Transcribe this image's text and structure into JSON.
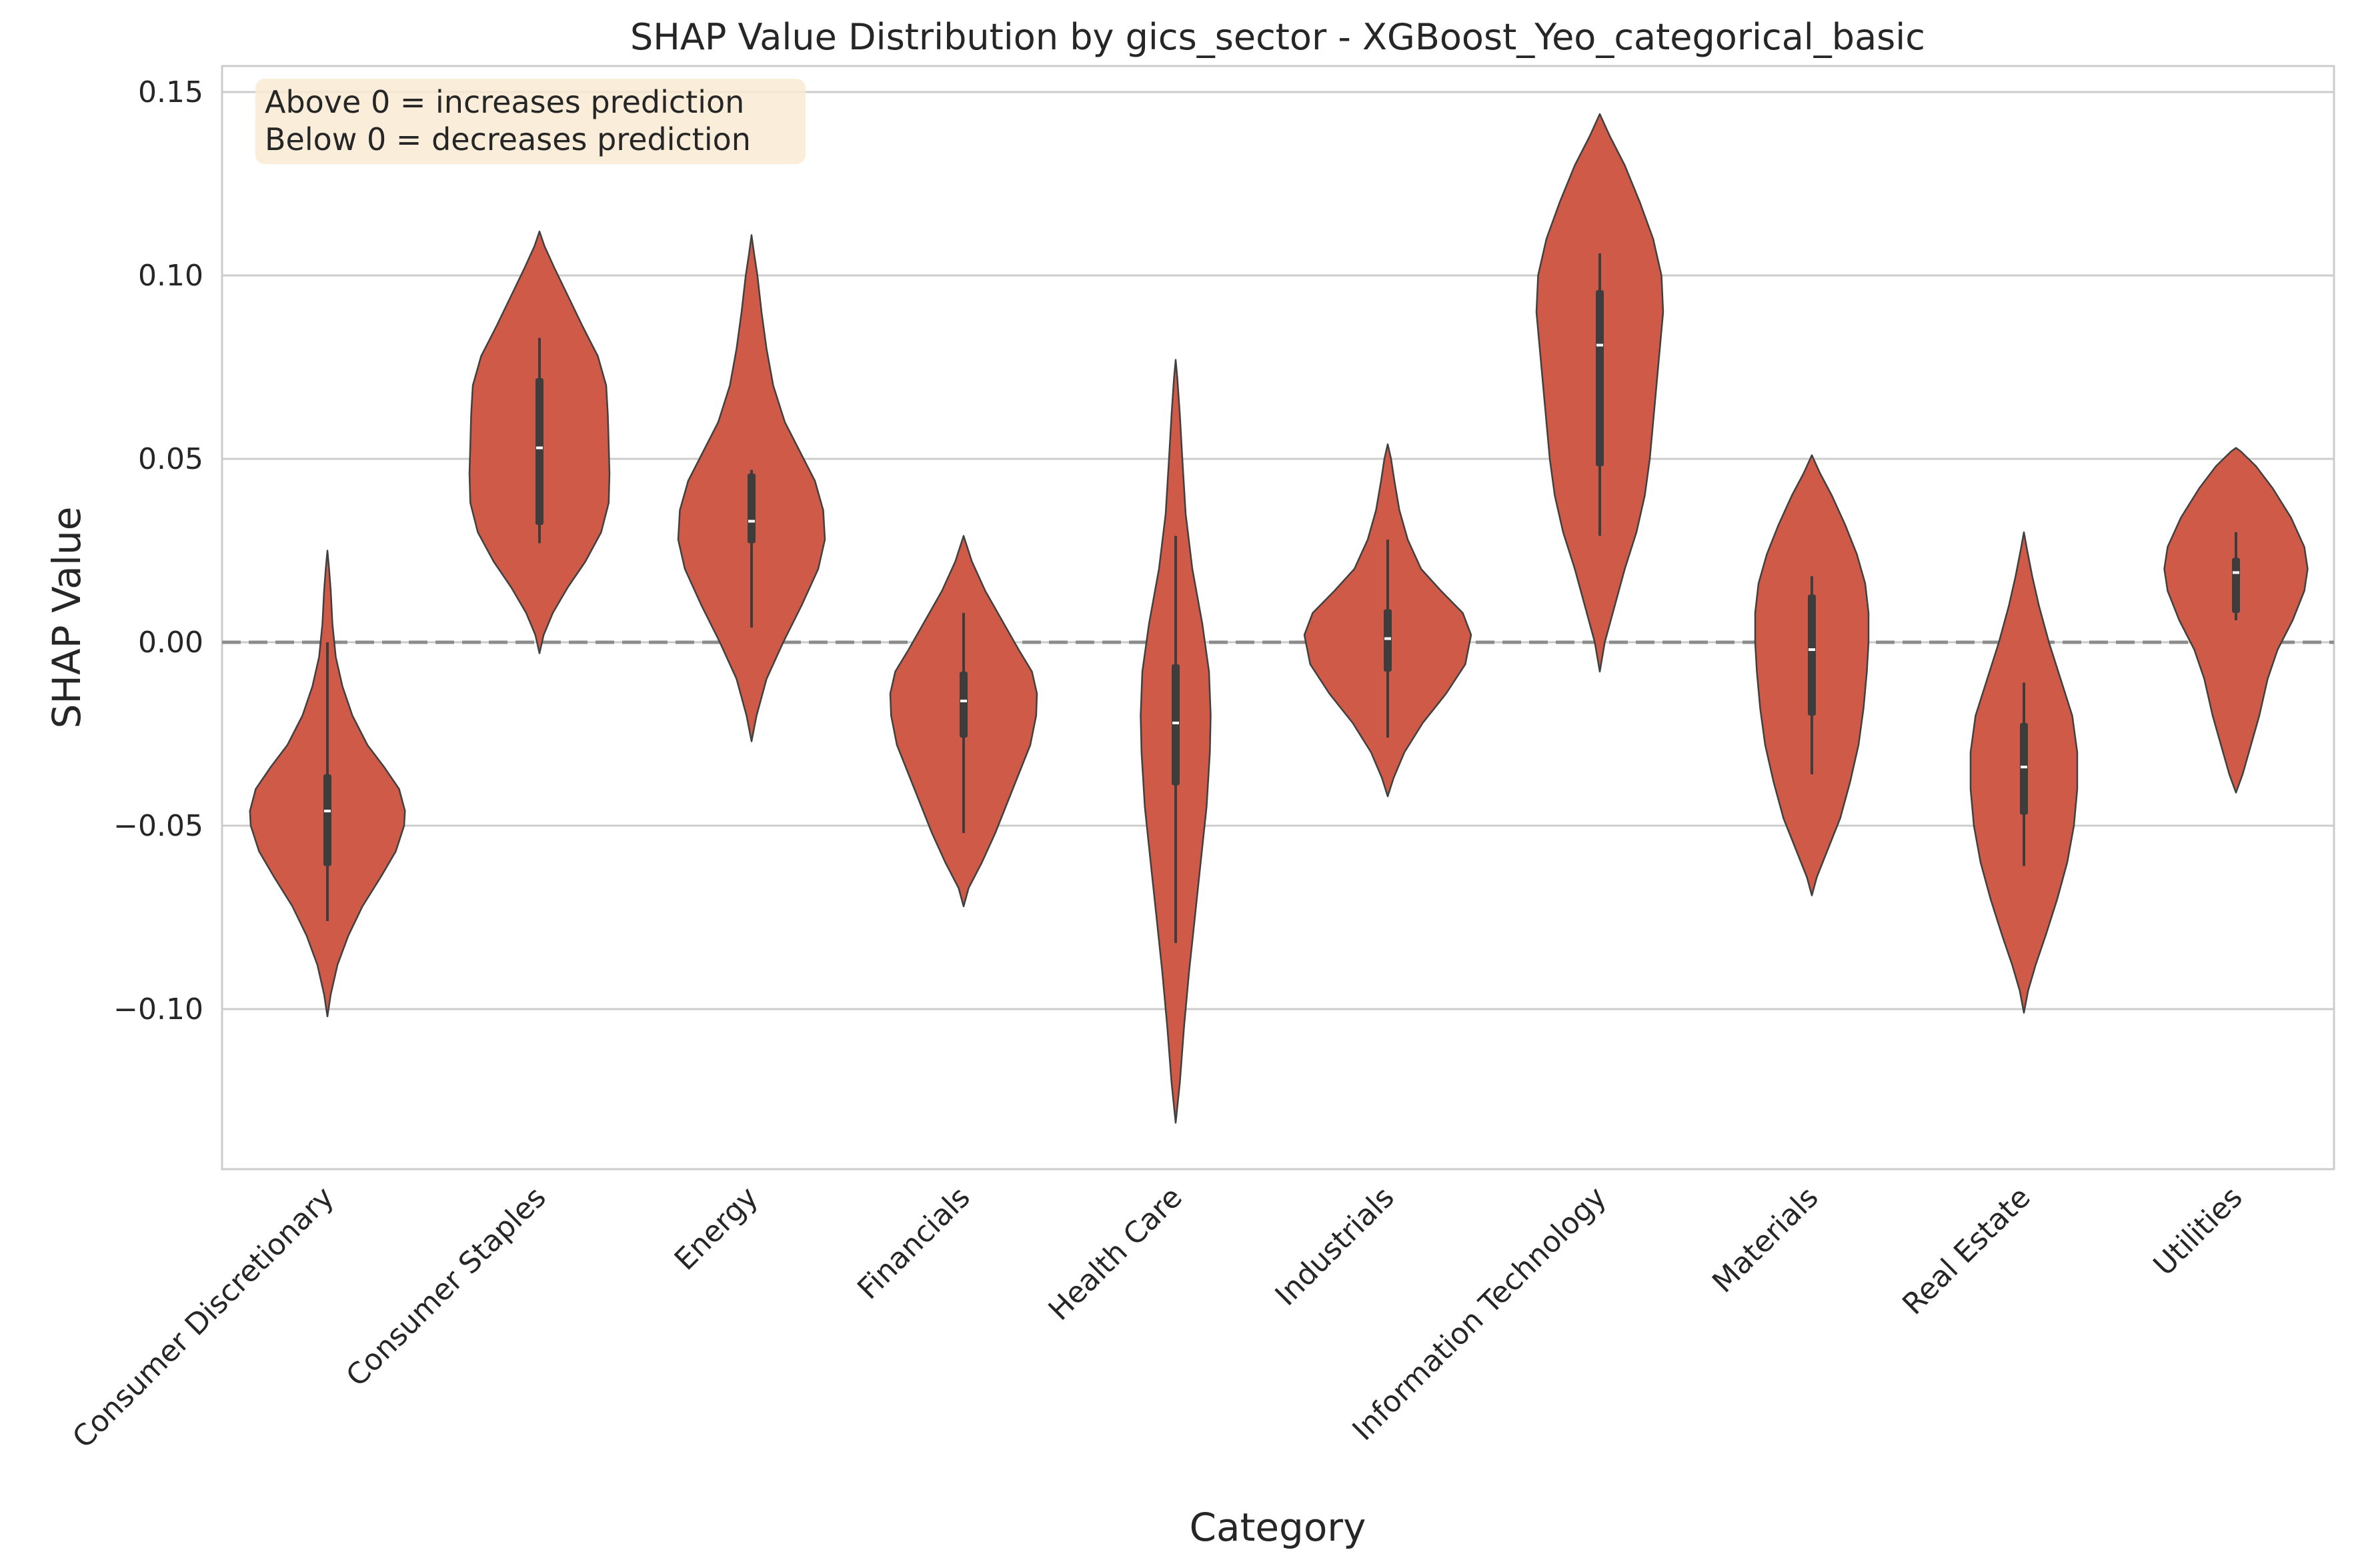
{
  "chart_data": {
    "type": "violin",
    "title": "SHAP Value Distribution by gics_sector - XGBoost_Yeo_categorical_basic",
    "xlabel": "Category",
    "ylabel": "SHAP Value",
    "ylim": [
      -0.145,
      0.157
    ],
    "yticks": [
      0.15,
      0.1,
      0.05,
      0.0,
      -0.05,
      -0.1
    ],
    "ytick_labels": [
      "0.15",
      "0.10",
      "0.05",
      "0.00",
      "−0.05",
      "−0.10"
    ],
    "grid": true,
    "reference_line": 0.0,
    "colors": {
      "violin_fill": "#d05a48",
      "violin_edge": "#404040",
      "box": "#3d3d3d",
      "median": "#ffffff",
      "grid": "#cccccc",
      "zero_line": "#8c8c8c",
      "note_bg": "#f9ebd3",
      "axes_edge": "#cccccc"
    },
    "annotation": {
      "lines": [
        "Above 0 = increases prediction",
        "Below 0 = decreases prediction"
      ],
      "placement": "top-left"
    },
    "categories": [
      {
        "name": "Consumer Discretionary",
        "min": -0.102,
        "max": 0.025,
        "whisker_low": -0.076,
        "whisker_high": 0.0,
        "q1": -0.061,
        "median": -0.046,
        "q3": -0.036,
        "profile": [
          [
            -0.102,
            0.0
          ],
          [
            -0.096,
            0.04
          ],
          [
            -0.088,
            0.12
          ],
          [
            -0.08,
            0.25
          ],
          [
            -0.072,
            0.42
          ],
          [
            -0.064,
            0.64
          ],
          [
            -0.057,
            0.82
          ],
          [
            -0.05,
            0.92
          ],
          [
            -0.046,
            0.93
          ],
          [
            -0.04,
            0.86
          ],
          [
            -0.034,
            0.68
          ],
          [
            -0.028,
            0.48
          ],
          [
            -0.02,
            0.3
          ],
          [
            -0.012,
            0.18
          ],
          [
            -0.004,
            0.1
          ],
          [
            0.005,
            0.06
          ],
          [
            0.014,
            0.04
          ],
          [
            0.02,
            0.02
          ],
          [
            0.025,
            0.0
          ]
        ]
      },
      {
        "name": "Consumer Staples",
        "min": -0.003,
        "max": 0.112,
        "whisker_low": 0.027,
        "whisker_high": 0.083,
        "q1": 0.032,
        "median": 0.053,
        "q3": 0.072,
        "profile": [
          [
            -0.003,
            0.0
          ],
          [
            0.002,
            0.05
          ],
          [
            0.008,
            0.16
          ],
          [
            0.015,
            0.34
          ],
          [
            0.022,
            0.55
          ],
          [
            0.03,
            0.74
          ],
          [
            0.038,
            0.83
          ],
          [
            0.046,
            0.84
          ],
          [
            0.054,
            0.83
          ],
          [
            0.062,
            0.82
          ],
          [
            0.07,
            0.8
          ],
          [
            0.078,
            0.7
          ],
          [
            0.086,
            0.52
          ],
          [
            0.094,
            0.35
          ],
          [
            0.102,
            0.18
          ],
          [
            0.108,
            0.06
          ],
          [
            0.112,
            0.0
          ]
        ]
      },
      {
        "name": "Energy",
        "min": -0.027,
        "max": 0.111,
        "whisker_low": 0.004,
        "whisker_high": 0.047,
        "q1": 0.027,
        "median": 0.033,
        "q3": 0.046,
        "profile": [
          [
            -0.027,
            0.0
          ],
          [
            -0.02,
            0.06
          ],
          [
            -0.01,
            0.18
          ],
          [
            0.0,
            0.38
          ],
          [
            0.01,
            0.6
          ],
          [
            0.02,
            0.8
          ],
          [
            0.028,
            0.88
          ],
          [
            0.036,
            0.86
          ],
          [
            0.044,
            0.76
          ],
          [
            0.052,
            0.58
          ],
          [
            0.06,
            0.4
          ],
          [
            0.07,
            0.26
          ],
          [
            0.08,
            0.18
          ],
          [
            0.09,
            0.12
          ],
          [
            0.1,
            0.07
          ],
          [
            0.106,
            0.03
          ],
          [
            0.111,
            0.0
          ]
        ]
      },
      {
        "name": "Financials",
        "min": -0.072,
        "max": 0.029,
        "whisker_low": -0.052,
        "whisker_high": 0.008,
        "q1": -0.026,
        "median": -0.016,
        "q3": -0.008,
        "profile": [
          [
            -0.072,
            0.0
          ],
          [
            -0.067,
            0.06
          ],
          [
            -0.06,
            0.22
          ],
          [
            -0.052,
            0.38
          ],
          [
            -0.044,
            0.52
          ],
          [
            -0.036,
            0.66
          ],
          [
            -0.028,
            0.8
          ],
          [
            -0.02,
            0.87
          ],
          [
            -0.014,
            0.88
          ],
          [
            -0.008,
            0.82
          ],
          [
            -0.002,
            0.66
          ],
          [
            0.006,
            0.46
          ],
          [
            0.014,
            0.26
          ],
          [
            0.022,
            0.1
          ],
          [
            0.029,
            0.0
          ]
        ]
      },
      {
        "name": "Health Care",
        "min": -0.131,
        "max": 0.077,
        "whisker_low": -0.082,
        "whisker_high": 0.029,
        "q1": -0.039,
        "median": -0.022,
        "q3": -0.006,
        "profile": [
          [
            -0.131,
            0.0
          ],
          [
            -0.12,
            0.05
          ],
          [
            -0.105,
            0.1
          ],
          [
            -0.09,
            0.16
          ],
          [
            -0.075,
            0.23
          ],
          [
            -0.06,
            0.3
          ],
          [
            -0.045,
            0.37
          ],
          [
            -0.03,
            0.41
          ],
          [
            -0.02,
            0.42
          ],
          [
            -0.008,
            0.4
          ],
          [
            0.005,
            0.32
          ],
          [
            0.02,
            0.2
          ],
          [
            0.035,
            0.12
          ],
          [
            0.05,
            0.08
          ],
          [
            0.062,
            0.05
          ],
          [
            0.072,
            0.02
          ],
          [
            0.077,
            0.0
          ]
        ]
      },
      {
        "name": "Industrials",
        "min": -0.042,
        "max": 0.054,
        "whisker_low": -0.026,
        "whisker_high": 0.028,
        "q1": -0.008,
        "median": 0.001,
        "q3": 0.009,
        "profile": [
          [
            -0.042,
            0.0
          ],
          [
            -0.037,
            0.07
          ],
          [
            -0.03,
            0.2
          ],
          [
            -0.022,
            0.42
          ],
          [
            -0.014,
            0.7
          ],
          [
            -0.006,
            0.93
          ],
          [
            0.002,
            1.0
          ],
          [
            0.008,
            0.9
          ],
          [
            0.014,
            0.64
          ],
          [
            0.02,
            0.4
          ],
          [
            0.028,
            0.24
          ],
          [
            0.036,
            0.14
          ],
          [
            0.044,
            0.08
          ],
          [
            0.05,
            0.04
          ],
          [
            0.054,
            0.0
          ]
        ]
      },
      {
        "name": "Information Technology",
        "min": -0.008,
        "max": 0.144,
        "whisker_low": 0.029,
        "whisker_high": 0.106,
        "q1": 0.048,
        "median": 0.081,
        "q3": 0.096,
        "profile": [
          [
            -0.008,
            0.0
          ],
          [
            0.0,
            0.06
          ],
          [
            0.01,
            0.18
          ],
          [
            0.02,
            0.3
          ],
          [
            0.03,
            0.44
          ],
          [
            0.04,
            0.54
          ],
          [
            0.05,
            0.6
          ],
          [
            0.06,
            0.64
          ],
          [
            0.07,
            0.68
          ],
          [
            0.08,
            0.72
          ],
          [
            0.09,
            0.76
          ],
          [
            0.1,
            0.74
          ],
          [
            0.11,
            0.64
          ],
          [
            0.12,
            0.48
          ],
          [
            0.13,
            0.3
          ],
          [
            0.138,
            0.12
          ],
          [
            0.144,
            0.0
          ]
        ]
      },
      {
        "name": "Materials",
        "min": -0.069,
        "max": 0.051,
        "whisker_low": -0.036,
        "whisker_high": 0.018,
        "q1": -0.02,
        "median": -0.002,
        "q3": 0.013,
        "profile": [
          [
            -0.069,
            0.0
          ],
          [
            -0.064,
            0.06
          ],
          [
            -0.056,
            0.2
          ],
          [
            -0.048,
            0.34
          ],
          [
            -0.038,
            0.46
          ],
          [
            -0.028,
            0.56
          ],
          [
            -0.018,
            0.62
          ],
          [
            -0.008,
            0.66
          ],
          [
            0.0,
            0.68
          ],
          [
            0.008,
            0.68
          ],
          [
            0.016,
            0.64
          ],
          [
            0.024,
            0.54
          ],
          [
            0.032,
            0.4
          ],
          [
            0.04,
            0.24
          ],
          [
            0.046,
            0.1
          ],
          [
            0.051,
            0.0
          ]
        ]
      },
      {
        "name": "Real Estate",
        "min": -0.101,
        "max": 0.03,
        "whisker_low": -0.061,
        "whisker_high": -0.011,
        "q1": -0.047,
        "median": -0.034,
        "q3": -0.022,
        "profile": [
          [
            -0.101,
            0.0
          ],
          [
            -0.095,
            0.05
          ],
          [
            -0.088,
            0.14
          ],
          [
            -0.08,
            0.26
          ],
          [
            -0.07,
            0.4
          ],
          [
            -0.06,
            0.52
          ],
          [
            -0.05,
            0.6
          ],
          [
            -0.04,
            0.64
          ],
          [
            -0.03,
            0.64
          ],
          [
            -0.02,
            0.58
          ],
          [
            -0.01,
            0.44
          ],
          [
            0.0,
            0.3
          ],
          [
            0.01,
            0.18
          ],
          [
            0.018,
            0.1
          ],
          [
            0.025,
            0.04
          ],
          [
            0.03,
            0.0
          ]
        ]
      },
      {
        "name": "Utilities",
        "min": -0.041,
        "max": 0.053,
        "whisker_low": 0.006,
        "whisker_high": 0.03,
        "q1": 0.008,
        "median": 0.019,
        "q3": 0.023,
        "profile": [
          [
            -0.041,
            0.0
          ],
          [
            -0.036,
            0.08
          ],
          [
            -0.028,
            0.18
          ],
          [
            -0.02,
            0.28
          ],
          [
            -0.01,
            0.38
          ],
          [
            -0.002,
            0.5
          ],
          [
            0.006,
            0.68
          ],
          [
            0.014,
            0.82
          ],
          [
            0.02,
            0.86
          ],
          [
            0.026,
            0.82
          ],
          [
            0.034,
            0.66
          ],
          [
            0.042,
            0.44
          ],
          [
            0.048,
            0.24
          ],
          [
            0.052,
            0.06
          ],
          [
            0.053,
            0.0
          ]
        ]
      }
    ]
  }
}
